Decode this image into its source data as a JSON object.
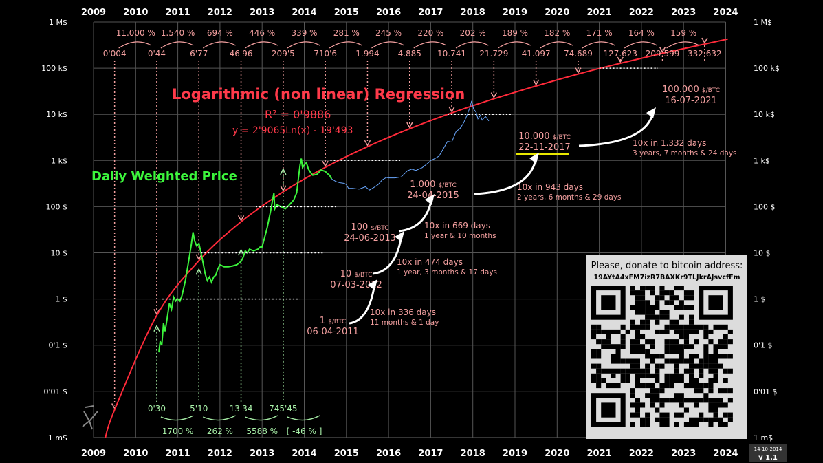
{
  "chart_data": {
    "type": "line",
    "title": "Logarithmic (non linear) Regression",
    "r2_label": "R² = 0'9886",
    "equation": "y = 2'9065Ln(x) - 19'493",
    "price_series_label": "Daily Weighted Price",
    "yscale": "log",
    "grid": true,
    "x_years": [
      "2009",
      "2010",
      "2011",
      "2012",
      "2013",
      "2014",
      "2015",
      "2016",
      "2017",
      "2018",
      "2019",
      "2020",
      "2021",
      "2022",
      "2023",
      "2024"
    ],
    "y_ticks": [
      {
        "value": 0.001,
        "label": "1 m$"
      },
      {
        "value": 0.01,
        "label": "0'01 $"
      },
      {
        "value": 0.1,
        "label": "0'1 $"
      },
      {
        "value": 1,
        "label": "1 $"
      },
      {
        "value": 10,
        "label": "10 $"
      },
      {
        "value": 100,
        "label": "100 $"
      },
      {
        "value": 1000,
        "label": "1 k$"
      },
      {
        "value": 10000,
        "label": "10 k$"
      },
      {
        "value": 100000,
        "label": "100 k$"
      },
      {
        "value": 1000000,
        "label": "1 M$"
      }
    ],
    "growth_pct_top": [
      "11.000 %",
      "1.540 %",
      "694 %",
      "446 %",
      "339 %",
      "281 %",
      "245 %",
      "220 %",
      "202 %",
      "189 %",
      "182 %",
      "171 %",
      "164 %",
      "159 %"
    ],
    "regression_year_values": [
      {
        "year": 2009.5,
        "value": 0.004,
        "label": "0'004"
      },
      {
        "year": 2010.5,
        "value": 0.44,
        "label": "0'44"
      },
      {
        "year": 2011.5,
        "value": 6.77,
        "label": "6'77"
      },
      {
        "year": 2012.5,
        "value": 46.96,
        "label": "46'96"
      },
      {
        "year": 2013.5,
        "value": 209.5,
        "label": "209'5"
      },
      {
        "year": 2014.5,
        "value": 710.6,
        "label": "710'6"
      },
      {
        "year": 2015.5,
        "value": 1994,
        "label": "1.994"
      },
      {
        "year": 2016.5,
        "value": 4885,
        "label": "4.885"
      },
      {
        "year": 2017.5,
        "value": 10741,
        "label": "10.741"
      },
      {
        "year": 2018.5,
        "value": 21729,
        "label": "21.729"
      },
      {
        "year": 2019.5,
        "value": 41097,
        "label": "41.097"
      },
      {
        "year": 2020.5,
        "value": 74689,
        "label": "74.689"
      },
      {
        "year": 2021.5,
        "value": 127623,
        "label": "127.623"
      },
      {
        "year": 2022.5,
        "value": 209599,
        "label": "209.599"
      },
      {
        "year": 2023.5,
        "value": 332632,
        "label": "332.632"
      }
    ],
    "actual_year_values": [
      {
        "year": 2010.5,
        "value": 0.3,
        "label": "0'30"
      },
      {
        "year": 2011.5,
        "value": 5.1,
        "label": "5'10"
      },
      {
        "year": 2012.5,
        "value": 13.34,
        "label": "13'34"
      },
      {
        "year": 2013.5,
        "value": 745.45,
        "label": "745'45"
      }
    ],
    "growth_pct_bottom": [
      "1700 %",
      "262 %",
      "5588 %",
      "[ -46 % ]"
    ],
    "milestones": [
      {
        "price_label": "1",
        "unit": "$/BTC",
        "date": "06-04-2011",
        "year": 2010.63,
        "value": 1
      },
      {
        "price_label": "10",
        "unit": "$/BTC",
        "date": "07-03-2012",
        "year": 2011.55,
        "value": 10
      },
      {
        "price_label": "100",
        "unit": "$/BTC",
        "date": "24-06-2013",
        "year": 2012.85,
        "value": 100
      },
      {
        "price_label": "1.000",
        "unit": "$/BTC",
        "date": "24-04-2015",
        "year": 2014.62,
        "value": 1000
      },
      {
        "price_label": "10.000",
        "unit": "$/BTC",
        "date": "22-11-2017",
        "year": 2017.4,
        "value": 10000
      },
      {
        "price_label": "100.000",
        "unit": "$/BTC",
        "date": "16-07-2021",
        "year": 2021.0,
        "value": 100000
      }
    ],
    "intervals": [
      {
        "line1": "10x in 336 days",
        "line2": "11 months & 1 day"
      },
      {
        "line1": "10x in 474 days",
        "line2": "1 year, 3 months & 17 days"
      },
      {
        "line1": "10x in 669 days",
        "line2": "1 year & 10 months"
      },
      {
        "line1": "10x in 943 days",
        "line2": "2 years, 6 months & 29 days"
      },
      {
        "line1": "10x  in 1.332 days",
        "line2": "3 years, 7 months & 24 days"
      }
    ],
    "actual_price_points": [
      [
        2010.55,
        0.07
      ],
      [
        2010.58,
        0.12
      ],
      [
        2010.62,
        0.1
      ],
      [
        2010.66,
        0.3
      ],
      [
        2010.7,
        0.2
      ],
      [
        2010.75,
        0.4
      ],
      [
        2010.8,
        0.8
      ],
      [
        2010.85,
        0.6
      ],
      [
        2010.9,
        1.1
      ],
      [
        2010.95,
        0.9
      ],
      [
        2011.0,
        1.0
      ],
      [
        2011.05,
        0.9
      ],
      [
        2011.1,
        1.2
      ],
      [
        2011.18,
        2.5
      ],
      [
        2011.25,
        6
      ],
      [
        2011.32,
        15
      ],
      [
        2011.36,
        28
      ],
      [
        2011.4,
        18
      ],
      [
        2011.45,
        14
      ],
      [
        2011.5,
        16
      ],
      [
        2011.55,
        10
      ],
      [
        2011.6,
        6
      ],
      [
        2011.65,
        3.5
      ],
      [
        2011.7,
        2.5
      ],
      [
        2011.75,
        3
      ],
      [
        2011.8,
        2.3
      ],
      [
        2011.85,
        3
      ],
      [
        2011.9,
        3.3
      ],
      [
        2011.95,
        4.5
      ],
      [
        2012.0,
        5.5
      ],
      [
        2012.1,
        5
      ],
      [
        2012.2,
        5
      ],
      [
        2012.3,
        5.2
      ],
      [
        2012.4,
        5.5
      ],
      [
        2012.5,
        6.5
      ],
      [
        2012.55,
        8
      ],
      [
        2012.6,
        11
      ],
      [
        2012.65,
        10
      ],
      [
        2012.7,
        12
      ],
      [
        2012.8,
        11
      ],
      [
        2012.9,
        12
      ],
      [
        2012.95,
        13.3
      ],
      [
        2013.0,
        13.5
      ],
      [
        2013.05,
        20
      ],
      [
        2013.12,
        35
      ],
      [
        2013.2,
        80
      ],
      [
        2013.25,
        140
      ],
      [
        2013.28,
        200
      ],
      [
        2013.3,
        90
      ],
      [
        2013.35,
        110
      ],
      [
        2013.45,
        100
      ],
      [
        2013.55,
        90
      ],
      [
        2013.65,
        110
      ],
      [
        2013.75,
        140
      ],
      [
        2013.82,
        200
      ],
      [
        2013.86,
        400
      ],
      [
        2013.9,
        800
      ],
      [
        2013.93,
        1100
      ],
      [
        2013.96,
        700
      ],
      [
        2014.0,
        800
      ],
      [
        2014.05,
        900
      ],
      [
        2014.1,
        650
      ],
      [
        2014.15,
        550
      ],
      [
        2014.2,
        480
      ],
      [
        2014.3,
        500
      ],
      [
        2014.4,
        620
      ],
      [
        2014.45,
        600
      ],
      [
        2014.5,
        580
      ],
      [
        2014.55,
        520
      ],
      [
        2014.6,
        480
      ],
      [
        2014.65,
        400
      ]
    ],
    "projected_price_points": [
      [
        2014.65,
        400
      ],
      [
        2014.75,
        350
      ],
      [
        2014.85,
        330
      ],
      [
        2014.95,
        320
      ],
      [
        2015.0,
        300
      ],
      [
        2015.05,
        250
      ],
      [
        2015.15,
        250
      ],
      [
        2015.3,
        240
      ],
      [
        2015.45,
        270
      ],
      [
        2015.55,
        230
      ],
      [
        2015.65,
        260
      ],
      [
        2015.75,
        300
      ],
      [
        2015.85,
        380
      ],
      [
        2015.95,
        430
      ],
      [
        2016.0,
        420
      ],
      [
        2016.15,
        420
      ],
      [
        2016.3,
        440
      ],
      [
        2016.45,
        600
      ],
      [
        2016.55,
        650
      ],
      [
        2016.65,
        610
      ],
      [
        2016.8,
        700
      ],
      [
        2016.95,
        900
      ],
      [
        2017.0,
        1000
      ],
      [
        2017.1,
        1100
      ],
      [
        2017.2,
        1250
      ],
      [
        2017.3,
        1800
      ],
      [
        2017.4,
        2600
      ],
      [
        2017.5,
        2500
      ],
      [
        2017.6,
        4200
      ],
      [
        2017.7,
        5000
      ],
      [
        2017.78,
        6500
      ],
      [
        2017.85,
        9000
      ],
      [
        2017.93,
        14000
      ],
      [
        2017.97,
        19500
      ]
    ],
    "post_peak_points": [
      [
        2017.97,
        19500
      ],
      [
        2018.02,
        13000
      ],
      [
        2018.08,
        11000
      ],
      [
        2018.12,
        8000
      ],
      [
        2018.18,
        9500
      ],
      [
        2018.22,
        7500
      ],
      [
        2018.3,
        9000
      ],
      [
        2018.38,
        7200
      ]
    ],
    "annotation_year_label": "2014",
    "donate_title": "Please, donate to bitcoin address:",
    "donate_address": "19AYtA4xFM7izR7BAXKr9TLJkrAJsvcfFm",
    "date_stamp": "14-10-2014",
    "version": "v 1.1"
  }
}
